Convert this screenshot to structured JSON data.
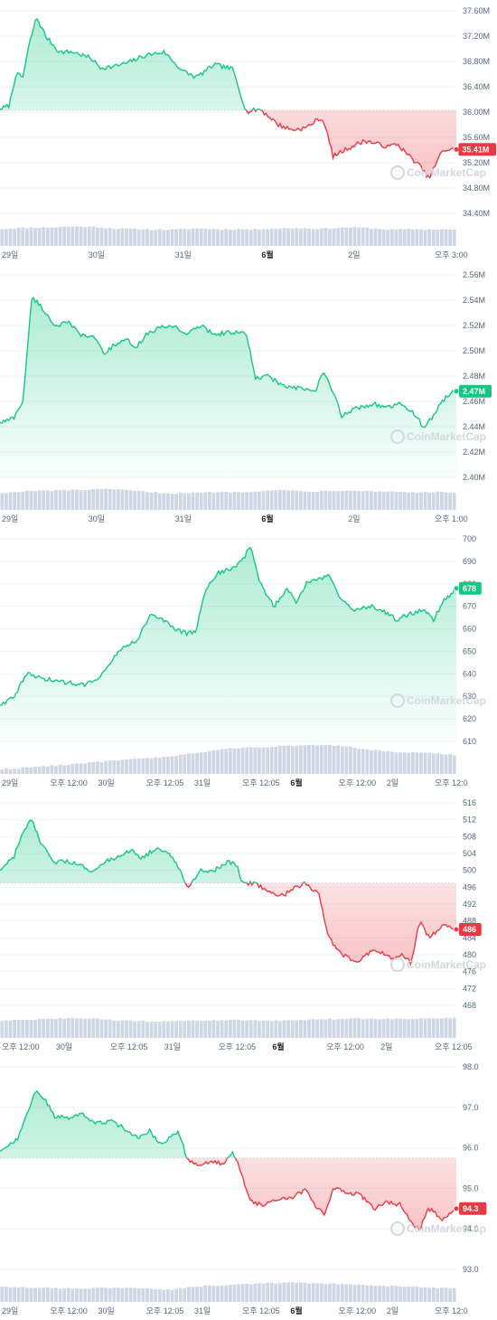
{
  "colors": {
    "up": "#16c784",
    "down": "#ea3943",
    "volume": "#cfd6e4",
    "grid": "#eff2f5",
    "axis_text": "#58667e",
    "baseline": "#cfd6e4"
  },
  "watermark": "CoinMarketCap",
  "chart_data": [
    {
      "type": "line",
      "ylim": [
        34.4,
        37.6
      ],
      "yticks": [
        "37.60M",
        "37.20M",
        "36.80M",
        "36.40M",
        "36.00M",
        "35.60M",
        "35.20M",
        "34.80M",
        "34.40M"
      ],
      "xticks": [
        {
          "label": "29일",
          "bold": false
        },
        {
          "label": "30일",
          "bold": false
        },
        {
          "label": "31일",
          "bold": false
        },
        {
          "label": "6월",
          "bold": true
        },
        {
          "label": "2일",
          "bold": false
        },
        {
          "label": "오후 3:00",
          "bold": false
        }
      ],
      "baseline": 36.03,
      "current_price_label": "35.41M",
      "current_price": 35.41,
      "trend": "down",
      "keypoints": [
        [
          0,
          36.05
        ],
        [
          0.02,
          36.1
        ],
        [
          0.035,
          36.6
        ],
        [
          0.05,
          36.55
        ],
        [
          0.065,
          37.1
        ],
        [
          0.08,
          37.5
        ],
        [
          0.1,
          37.2
        ],
        [
          0.13,
          36.95
        ],
        [
          0.16,
          36.95
        ],
        [
          0.2,
          36.85
        ],
        [
          0.22,
          36.7
        ],
        [
          0.25,
          36.72
        ],
        [
          0.28,
          36.78
        ],
        [
          0.32,
          36.9
        ],
        [
          0.36,
          36.95
        ],
        [
          0.4,
          36.65
        ],
        [
          0.43,
          36.55
        ],
        [
          0.47,
          36.75
        ],
        [
          0.51,
          36.68
        ],
        [
          0.54,
          36.0
        ],
        [
          0.57,
          36.05
        ],
        [
          0.61,
          35.8
        ],
        [
          0.64,
          35.72
        ],
        [
          0.67,
          35.75
        ],
        [
          0.7,
          35.9
        ],
        [
          0.71,
          35.85
        ],
        [
          0.73,
          35.3
        ],
        [
          0.76,
          35.42
        ],
        [
          0.8,
          35.55
        ],
        [
          0.85,
          35.45
        ],
        [
          0.87,
          35.5
        ],
        [
          0.89,
          35.35
        ],
        [
          0.92,
          35.15
        ],
        [
          0.94,
          34.95
        ],
        [
          0.97,
          35.4
        ],
        [
          1,
          35.41
        ]
      ],
      "volume": [
        0.55,
        0.58,
        0.6,
        0.6,
        0.62,
        0.63,
        0.62,
        0.57,
        0.55,
        0.54,
        0.53,
        0.53,
        0.56,
        0.56,
        0.54,
        0.55,
        0.53,
        0.56,
        0.57,
        0.58,
        0.56,
        0.57,
        0.6,
        0.6,
        0.56,
        0.53,
        0.54,
        0.54,
        0.54,
        0.53
      ]
    },
    {
      "type": "line",
      "ylim": [
        2.4,
        2.56
      ],
      "yticks": [
        "2.56M",
        "2.54M",
        "2.52M",
        "2.50M",
        "2.48M",
        "2.46M",
        "2.44M",
        "2.42M",
        "2.40M"
      ],
      "xticks": [
        {
          "label": "29일",
          "bold": false
        },
        {
          "label": "30일",
          "bold": false
        },
        {
          "label": "31일",
          "bold": false
        },
        {
          "label": "6월",
          "bold": true
        },
        {
          "label": "2일",
          "bold": false
        },
        {
          "label": "오후 1:00",
          "bold": false
        }
      ],
      "baseline": null,
      "current_price_label": "2.47M",
      "current_price": 2.468,
      "trend": "up",
      "keypoints": [
        [
          0,
          2.443
        ],
        [
          0.03,
          2.447
        ],
        [
          0.05,
          2.46
        ],
        [
          0.06,
          2.5
        ],
        [
          0.07,
          2.543
        ],
        [
          0.09,
          2.535
        ],
        [
          0.12,
          2.52
        ],
        [
          0.15,
          2.522
        ],
        [
          0.18,
          2.512
        ],
        [
          0.21,
          2.51
        ],
        [
          0.23,
          2.497
        ],
        [
          0.25,
          2.505
        ],
        [
          0.28,
          2.508
        ],
        [
          0.3,
          2.503
        ],
        [
          0.32,
          2.513
        ],
        [
          0.35,
          2.518
        ],
        [
          0.38,
          2.52
        ],
        [
          0.41,
          2.513
        ],
        [
          0.44,
          2.52
        ],
        [
          0.47,
          2.513
        ],
        [
          0.51,
          2.515
        ],
        [
          0.54,
          2.513
        ],
        [
          0.56,
          2.478
        ],
        [
          0.59,
          2.48
        ],
        [
          0.62,
          2.472
        ],
        [
          0.66,
          2.47
        ],
        [
          0.69,
          2.468
        ],
        [
          0.71,
          2.483
        ],
        [
          0.73,
          2.467
        ],
        [
          0.75,
          2.448
        ],
        [
          0.78,
          2.455
        ],
        [
          0.82,
          2.458
        ],
        [
          0.85,
          2.455
        ],
        [
          0.88,
          2.458
        ],
        [
          0.91,
          2.45
        ],
        [
          0.93,
          2.438
        ],
        [
          0.96,
          2.455
        ],
        [
          0.98,
          2.465
        ],
        [
          1,
          2.468
        ]
      ],
      "volume": [
        0.55,
        0.58,
        0.62,
        0.63,
        0.64,
        0.65,
        0.66,
        0.67,
        0.64,
        0.6,
        0.56,
        0.54,
        0.55,
        0.56,
        0.58,
        0.58,
        0.6,
        0.63,
        0.64,
        0.62,
        0.6,
        0.62,
        0.64,
        0.62,
        0.6,
        0.6,
        0.58,
        0.57,
        0.58,
        0.56
      ]
    },
    {
      "type": "line",
      "ylim": [
        610,
        700
      ],
      "yticks": [
        "700",
        "690",
        "680",
        "670",
        "660",
        "650",
        "640",
        "630",
        "620",
        "610"
      ],
      "xticks": [
        {
          "label": "29일",
          "bold": false
        },
        {
          "label": "오후 12:00",
          "bold": false
        },
        {
          "label": "30일",
          "bold": false
        },
        {
          "label": "오후 12:05",
          "bold": false
        },
        {
          "label": "31일",
          "bold": false
        },
        {
          "label": "오후 12:05",
          "bold": false
        },
        {
          "label": "6월",
          "bold": true
        },
        {
          "label": "오후 12:00",
          "bold": false
        },
        {
          "label": "2일",
          "bold": false
        },
        {
          "label": "오후 12:0",
          "bold": false
        }
      ],
      "baseline": null,
      "current_price_label": "678",
      "current_price": 678,
      "trend": "up",
      "keypoints": [
        [
          0,
          626
        ],
        [
          0.03,
          630
        ],
        [
          0.06,
          640
        ],
        [
          0.09,
          638
        ],
        [
          0.12,
          637
        ],
        [
          0.15,
          636
        ],
        [
          0.18,
          635
        ],
        [
          0.21,
          637
        ],
        [
          0.24,
          645
        ],
        [
          0.27,
          652
        ],
        [
          0.3,
          655
        ],
        [
          0.33,
          666
        ],
        [
          0.36,
          664
        ],
        [
          0.38,
          660
        ],
        [
          0.41,
          658
        ],
        [
          0.43,
          659
        ],
        [
          0.45,
          678
        ],
        [
          0.48,
          685
        ],
        [
          0.5,
          686
        ],
        [
          0.53,
          690
        ],
        [
          0.55,
          697
        ],
        [
          0.57,
          680
        ],
        [
          0.6,
          670
        ],
        [
          0.63,
          678
        ],
        [
          0.65,
          672
        ],
        [
          0.67,
          680
        ],
        [
          0.7,
          682
        ],
        [
          0.72,
          684
        ],
        [
          0.75,
          672
        ],
        [
          0.78,
          668
        ],
        [
          0.81,
          670
        ],
        [
          0.84,
          668
        ],
        [
          0.87,
          664
        ],
        [
          0.9,
          667
        ],
        [
          0.93,
          668
        ],
        [
          0.95,
          664
        ],
        [
          0.97,
          672
        ],
        [
          1,
          678
        ]
      ],
      "volume": [
        0.15,
        0.18,
        0.22,
        0.26,
        0.3,
        0.34,
        0.38,
        0.42,
        0.46,
        0.5,
        0.54,
        0.58,
        0.64,
        0.72,
        0.8,
        0.84,
        0.86,
        0.88,
        0.9,
        0.92,
        0.93,
        0.94,
        0.9,
        0.82,
        0.76,
        0.72,
        0.7,
        0.68,
        0.66,
        0.62
      ]
    },
    {
      "type": "line",
      "ylim": [
        468,
        516
      ],
      "yticks": [
        "516",
        "512",
        "508",
        "504",
        "500",
        "496",
        "492",
        "488",
        "484",
        "480",
        "476",
        "472",
        "468"
      ],
      "xticks": [
        {
          "label": "오후 12:00",
          "bold": false
        },
        {
          "label": "30일",
          "bold": false
        },
        {
          "label": "오후 12:05",
          "bold": false
        },
        {
          "label": "31일",
          "bold": false
        },
        {
          "label": "오후 12:05",
          "bold": false
        },
        {
          "label": "6월",
          "bold": true
        },
        {
          "label": "오후 12:00",
          "bold": false
        },
        {
          "label": "2일",
          "bold": false
        },
        {
          "label": "오후 12:05",
          "bold": false
        }
      ],
      "baseline": 497,
      "current_price_label": "486",
      "current_price": 486,
      "trend": "down",
      "keypoints": [
        [
          0,
          500
        ],
        [
          0.03,
          503
        ],
        [
          0.05,
          509
        ],
        [
          0.07,
          512
        ],
        [
          0.09,
          506
        ],
        [
          0.12,
          502
        ],
        [
          0.15,
          502
        ],
        [
          0.18,
          501
        ],
        [
          0.2,
          500
        ],
        [
          0.23,
          502
        ],
        [
          0.26,
          503
        ],
        [
          0.29,
          505
        ],
        [
          0.31,
          503
        ],
        [
          0.34,
          505
        ],
        [
          0.37,
          504
        ],
        [
          0.39,
          501
        ],
        [
          0.41,
          496
        ],
        [
          0.44,
          500
        ],
        [
          0.47,
          500
        ],
        [
          0.5,
          502
        ],
        [
          0.52,
          501
        ],
        [
          0.53,
          497
        ],
        [
          0.56,
          497
        ],
        [
          0.59,
          495
        ],
        [
          0.62,
          494
        ],
        [
          0.65,
          496
        ],
        [
          0.67,
          497
        ],
        [
          0.7,
          494
        ],
        [
          0.72,
          484
        ],
        [
          0.75,
          480
        ],
        [
          0.78,
          478
        ],
        [
          0.8,
          480
        ],
        [
          0.83,
          481
        ],
        [
          0.86,
          479
        ],
        [
          0.88,
          480
        ],
        [
          0.9,
          478
        ],
        [
          0.92,
          488
        ],
        [
          0.94,
          484
        ],
        [
          0.97,
          487
        ],
        [
          1,
          486
        ]
      ],
      "volume": [
        0.55,
        0.58,
        0.6,
        0.62,
        0.63,
        0.64,
        0.62,
        0.58,
        0.56,
        0.54,
        0.53,
        0.54,
        0.55,
        0.56,
        0.57,
        0.58,
        0.57,
        0.56,
        0.56,
        0.58,
        0.6,
        0.61,
        0.62,
        0.63,
        0.62,
        0.62,
        0.62,
        0.63,
        0.64,
        0.64
      ]
    },
    {
      "type": "line",
      "ylim": [
        92.5,
        98.5
      ],
      "yticks": [
        "98.0",
        "97.0",
        "96.0",
        "95.0",
        "94.0",
        "93.0"
      ],
      "xticks": [
        {
          "label": "29일",
          "bold": false
        },
        {
          "label": "오후 12:00",
          "bold": false
        },
        {
          "label": "30일",
          "bold": false
        },
        {
          "label": "오후 12:05",
          "bold": false
        },
        {
          "label": "31일",
          "bold": false
        },
        {
          "label": "오후 12:05",
          "bold": false
        },
        {
          "label": "6월",
          "bold": true
        },
        {
          "label": "오후 12:00",
          "bold": false
        },
        {
          "label": "2일",
          "bold": false
        },
        {
          "label": "오후 12:0",
          "bold": false
        }
      ],
      "baseline": 95.8,
      "current_price_label": "94.3",
      "current_price": 94.3,
      "trend": "down",
      "keypoints": [
        [
          0,
          96.0
        ],
        [
          0.02,
          96.2
        ],
        [
          0.04,
          96.4
        ],
        [
          0.06,
          97.2
        ],
        [
          0.08,
          97.8
        ],
        [
          0.1,
          97.5
        ],
        [
          0.12,
          97.0
        ],
        [
          0.15,
          97.0
        ],
        [
          0.18,
          97.1
        ],
        [
          0.21,
          96.8
        ],
        [
          0.24,
          96.9
        ],
        [
          0.27,
          96.7
        ],
        [
          0.3,
          96.4
        ],
        [
          0.33,
          96.6
        ],
        [
          0.35,
          96.2
        ],
        [
          0.37,
          96.4
        ],
        [
          0.39,
          96.6
        ],
        [
          0.41,
          95.8
        ],
        [
          0.43,
          95.6
        ],
        [
          0.46,
          95.7
        ],
        [
          0.49,
          95.6
        ],
        [
          0.51,
          96.0
        ],
        [
          0.53,
          95.3
        ],
        [
          0.55,
          94.5
        ],
        [
          0.58,
          94.4
        ],
        [
          0.61,
          94.6
        ],
        [
          0.64,
          94.6
        ],
        [
          0.67,
          94.9
        ],
        [
          0.69,
          94.4
        ],
        [
          0.71,
          94.1
        ],
        [
          0.73,
          94.9
        ],
        [
          0.76,
          94.8
        ],
        [
          0.79,
          94.7
        ],
        [
          0.82,
          94.3
        ],
        [
          0.85,
          94.5
        ],
        [
          0.88,
          94.4
        ],
        [
          0.9,
          93.9
        ],
        [
          0.92,
          93.7
        ],
        [
          0.94,
          94.3
        ],
        [
          0.97,
          94.0
        ],
        [
          1,
          94.3
        ]
      ],
      "volume": [
        0.5,
        0.48,
        0.46,
        0.45,
        0.44,
        0.43,
        0.45,
        0.46,
        0.45,
        0.44,
        0.42,
        0.4,
        0.48,
        0.52,
        0.54,
        0.56,
        0.58,
        0.6,
        0.62,
        0.62,
        0.6,
        0.6,
        0.58,
        0.56,
        0.54,
        0.52,
        0.5,
        0.48,
        0.46,
        0.44
      ]
    }
  ]
}
